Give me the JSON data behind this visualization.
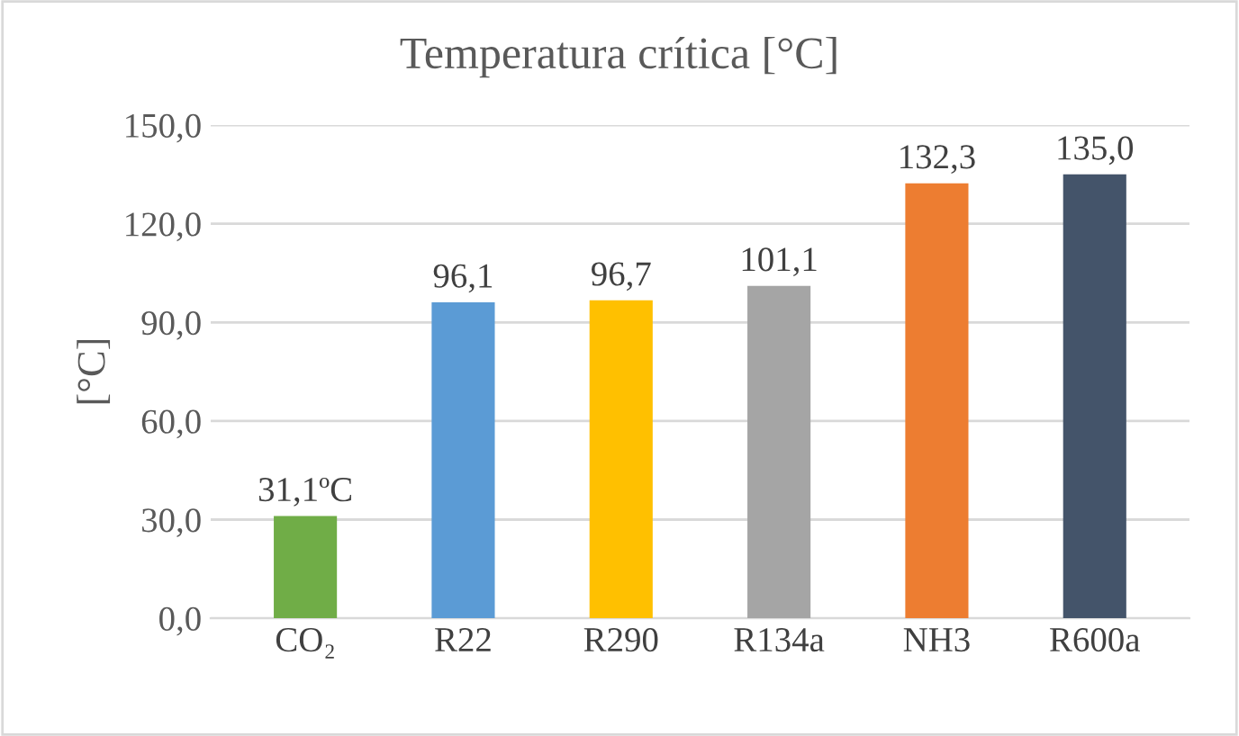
{
  "chart_data": {
    "type": "bar",
    "title": "Temperatura crítica [°C]",
    "ylabel": "[°C]",
    "categories": [
      "CO₂",
      "R22",
      "R290",
      "R134a",
      "NH3",
      "R600a"
    ],
    "values": [
      31.1,
      96.1,
      96.7,
      101.1,
      132.3,
      135.0
    ],
    "colors": [
      "#70ad47",
      "#5b9bd5",
      "#ffc000",
      "#a5a5a5",
      "#ed7d31",
      "#44546a"
    ],
    "value_labels": [
      "31,1ºC",
      "96,1",
      "96,7",
      "101,1",
      "132,3",
      "135,0"
    ],
    "ylim": [
      0,
      150
    ],
    "yticks": [
      {
        "value": 0,
        "label": "0,0"
      },
      {
        "value": 30,
        "label": "30,0"
      },
      {
        "value": 60,
        "label": "60,0"
      },
      {
        "value": 90,
        "label": "90,0"
      },
      {
        "value": 120,
        "label": "120,0"
      },
      {
        "value": 150,
        "label": "150,0"
      }
    ],
    "grid": "y"
  }
}
